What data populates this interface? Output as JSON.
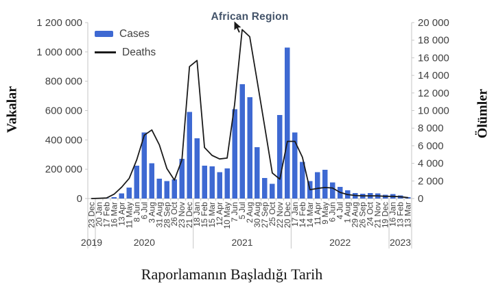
{
  "figure": {
    "title": "African Region",
    "x_axis_title": "Raporlamanın Başladığı Tarih",
    "left_axis_title": "Vakalar",
    "right_axis_title": "Ölümler"
  },
  "legend": [
    {
      "label": "Cases",
      "type": "bar"
    },
    {
      "label": "Deaths",
      "type": "line"
    }
  ],
  "colors": {
    "bar": "#3E69D2",
    "line": "#1a1a1a",
    "axis": "#C6C6C6",
    "tick_text": "#3F3F3F",
    "title_text": "#44546A"
  },
  "icons": {
    "cursor": "arrow-pointer"
  },
  "chart_data": {
    "type": "combo",
    "title": "African Region",
    "xlabel": "Raporlamanın Başladığı Tarih",
    "ylabel_left": "Vakalar",
    "ylabel_right": "Ölümler",
    "grid": false,
    "legend_position": "top-left",
    "left_axis": {
      "min": 0,
      "max": 1200000,
      "step": 200000,
      "tick_labels": [
        "0",
        "200 000",
        "400 000",
        "600 000",
        "800 000",
        "1 000 000",
        "1 200 000"
      ]
    },
    "right_axis": {
      "min": 0,
      "max": 20000,
      "step": 2000,
      "tick_labels": [
        "0",
        "2 000",
        "4 000",
        "6 000",
        "8 000",
        "10 000",
        "12 000",
        "14 000",
        "16 000",
        "18 000",
        "20 000"
      ]
    },
    "categories": [
      "23 Dec",
      "20 Jan",
      "17 Feb",
      "16 Mar",
      "13 Apr",
      "11 May",
      "8 Jun",
      "6 Jul",
      "3 Aug",
      "31 Aug",
      "28 Sep",
      "26 Oct",
      "23 Nov",
      "21 Dec",
      "18 Jan",
      "15 Feb",
      "15 Mar",
      "12 Apr",
      "10 May",
      "7 Jun",
      "5 Jul",
      "2 Aug",
      "30 Aug",
      "27 Sep",
      "25 Oct",
      "22 Nov",
      "20 Dec",
      "17 Jan",
      "14 Feb",
      "14 Mar",
      "11 Apr",
      "9 May",
      "6 Jun",
      "4 Jul",
      "1 Aug",
      "29 Aug",
      "26 Sep",
      "24 Oct",
      "21 Nov",
      "19 Dec",
      "16 Jan",
      "13 Feb",
      "13 Mar"
    ],
    "year_groups": [
      {
        "label": "2019",
        "start": 0,
        "end": 0
      },
      {
        "label": "2020",
        "start": 1,
        "end": 13
      },
      {
        "label": "2021",
        "start": 14,
        "end": 26
      },
      {
        "label": "2022",
        "start": 27,
        "end": 39
      },
      {
        "label": "2023",
        "start": 40,
        "end": 42
      }
    ],
    "series": [
      {
        "name": "Cases",
        "type": "bar",
        "axis": "left",
        "values": [
          0,
          500,
          2000,
          10000,
          35000,
          75000,
          225000,
          450000,
          240000,
          135000,
          120000,
          130000,
          270000,
          590000,
          410000,
          225000,
          220000,
          180000,
          205000,
          610000,
          780000,
          690000,
          350000,
          140000,
          100000,
          570000,
          1030000,
          450000,
          250000,
          120000,
          180000,
          195000,
          110000,
          80000,
          56000,
          38000,
          32000,
          38000,
          36000,
          25000,
          30000,
          20000,
          10000
        ]
      },
      {
        "name": "Deaths",
        "type": "line",
        "axis": "right",
        "values": [
          0,
          20,
          60,
          500,
          1300,
          2300,
          4400,
          7200,
          7800,
          6100,
          3400,
          2100,
          4400,
          15000,
          15700,
          5800,
          4900,
          4500,
          4600,
          10700,
          19200,
          18400,
          13300,
          8100,
          2900,
          2200,
          6500,
          6500,
          4700,
          1000,
          1150,
          1250,
          1200,
          700,
          450,
          350,
          300,
          300,
          300,
          250,
          250,
          200,
          100
        ]
      }
    ]
  }
}
